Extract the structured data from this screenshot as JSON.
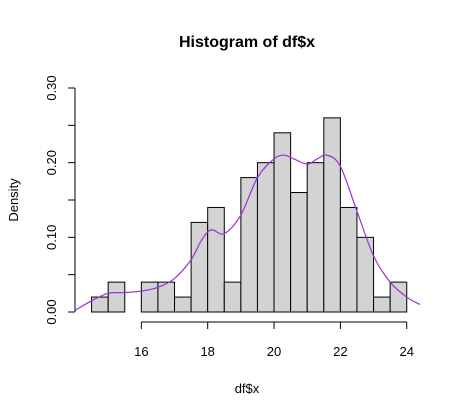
{
  "chart_data": {
    "type": "bar",
    "title": "Histogram of df$x",
    "xlabel": "df$x",
    "ylabel": "Density",
    "xlim": [
      14,
      24.4
    ],
    "ylim": [
      0,
      0.3
    ],
    "xticks": [
      16,
      18,
      20,
      22,
      24
    ],
    "xtick_labels": [
      "16",
      "18",
      "20",
      "22",
      "24"
    ],
    "yticks": [
      0,
      0.1,
      0.2,
      0.3
    ],
    "ytick_labels": [
      "0.00",
      "0.10",
      "0.20",
      "0.30"
    ],
    "bin_edges": [
      14.5,
      15,
      15.5,
      16,
      16.5,
      17,
      17.5,
      18,
      18.5,
      19,
      19.5,
      20,
      20.5,
      21,
      21.5,
      22,
      22.5,
      23,
      23.5,
      24
    ],
    "values": [
      0.02,
      0.04,
      0.0,
      0.04,
      0.04,
      0.02,
      0.12,
      0.14,
      0.04,
      0.18,
      0.2,
      0.24,
      0.16,
      0.2,
      0.26,
      0.14,
      0.1,
      0.02,
      0.04
    ],
    "density_curve": {
      "color": "#9b30d9",
      "x": [
        14.0,
        14.5,
        15.0,
        15.5,
        16.0,
        16.5,
        17.0,
        17.5,
        17.8,
        18.1,
        18.5,
        19.0,
        19.5,
        20.0,
        20.3,
        20.6,
        21.0,
        21.3,
        21.6,
        22.0,
        22.5,
        23.0,
        23.5,
        24.0,
        24.4
      ],
      "y": [
        0.002,
        0.015,
        0.025,
        0.026,
        0.028,
        0.033,
        0.045,
        0.07,
        0.095,
        0.11,
        0.105,
        0.13,
        0.18,
        0.205,
        0.21,
        0.205,
        0.198,
        0.205,
        0.21,
        0.195,
        0.135,
        0.075,
        0.04,
        0.02,
        0.01
      ]
    },
    "grid": false,
    "legend": "none"
  }
}
